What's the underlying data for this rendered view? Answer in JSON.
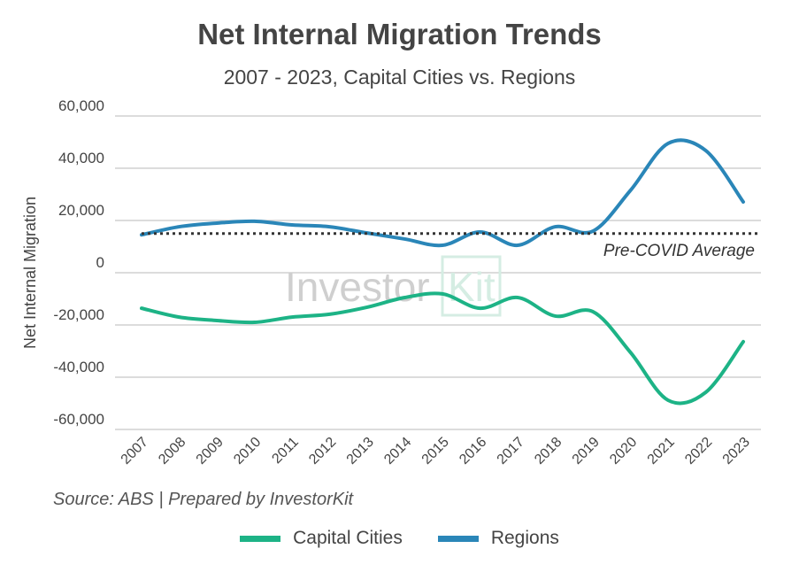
{
  "title": "Net Internal Migration Trends",
  "subtitle": "2007 - 2023, Capital Cities vs. Regions",
  "source": "Source: ABS | Prepared by InvestorKit",
  "watermark": "InvestorKit",
  "chart_data": {
    "type": "line",
    "title": "Net Internal Migration Trends",
    "subtitle": "2007 - 2023, Capital Cities vs. Regions",
    "ylabel": "Net Internal Migration",
    "xlabel": "",
    "ylim": [
      -60000,
      60000
    ],
    "yticks": [
      60000,
      40000,
      20000,
      0,
      -20000,
      -40000,
      -60000
    ],
    "ytick_labels": [
      "60,000",
      "40,000",
      "20,000",
      "0",
      "-20,000",
      "-40,000",
      "-60,000"
    ],
    "grid": true,
    "legend_placement": "bottom",
    "categories": [
      "2007",
      "2008",
      "2009",
      "2010",
      "2011",
      "2012",
      "2013",
      "2014",
      "2015",
      "2016",
      "2017",
      "2018",
      "2019",
      "2020",
      "2021",
      "2022",
      "2023"
    ],
    "series": [
      {
        "name": "Capital Cities",
        "color": "#1db386",
        "values": [
          -13600,
          -17000,
          -18300,
          -19000,
          -17000,
          -15900,
          -13200,
          -9500,
          -8100,
          -13600,
          -9500,
          -16600,
          -14900,
          -30500,
          -48800,
          -45800,
          -26400
        ]
      },
      {
        "name": "Regions",
        "color": "#2a86b8",
        "values": [
          14500,
          17600,
          19000,
          19700,
          18300,
          17600,
          15200,
          12900,
          10500,
          15600,
          10500,
          17600,
          15900,
          31500,
          49500,
          46800,
          27100
        ]
      }
    ],
    "annotations": [
      {
        "label": "Pre-COVID Average",
        "value": 15000,
        "style": "dotted",
        "color": "#333333"
      }
    ]
  }
}
